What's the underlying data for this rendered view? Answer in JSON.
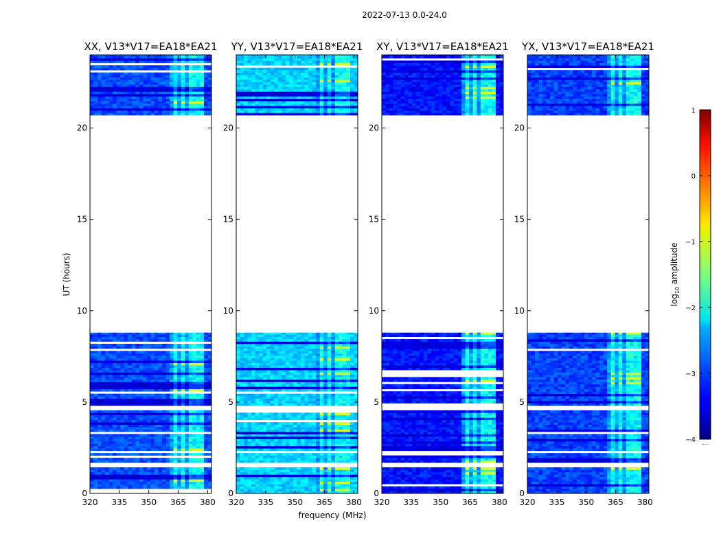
{
  "figure_title": "2022-07-13 0.0-24.0",
  "chart_data": {
    "type": "heatmap",
    "title": "2022-07-13 0.0-24.0",
    "xlabel": "frequency (MHz)",
    "ylabel": "UT (hours)",
    "xlim": [
      320,
      382
    ],
    "ylim": [
      0,
      24
    ],
    "xticks": [
      320,
      335,
      350,
      365,
      380
    ],
    "xtick_labels": [
      "320",
      "335",
      "350",
      "365",
      "380"
    ],
    "yticks": [
      0,
      5,
      10,
      15,
      20
    ],
    "ytick_labels": [
      "0",
      "5",
      "10",
      "15",
      "20"
    ],
    "panels": [
      {
        "title": "XX, V13*V17=EA18*EA21",
        "pol": "XX",
        "background_log_amp": -3.0
      },
      {
        "title": "YY, V13*V17=EA18*EA21",
        "pol": "YY",
        "background_log_amp": -2.35
      },
      {
        "title": "XY, V13*V17=EA18*EA21",
        "pol": "XY",
        "background_log_amp": -3.3
      },
      {
        "title": "YX, V13*V17=EA18*EA21",
        "pol": "YX",
        "background_log_amp": -3.05
      }
    ],
    "data_time_ranges_hours": [
      [
        0.0,
        8.8
      ],
      [
        20.7,
        24.0
      ]
    ],
    "empty_time_range_hours": [
      8.8,
      20.7
    ],
    "flagged_time_intervals_hours": [
      [
        4.45,
        4.7
      ],
      [
        1.4,
        1.6
      ],
      [
        2.15,
        2.3
      ]
    ],
    "rfi_frequency_band_mhz": [
      361,
      379
    ],
    "rfi_strong_channels_mhz": [
      {
        "center": 363.5,
        "width": 3,
        "log_amp": -1.1
      },
      {
        "center": 368,
        "width": 2.5,
        "log_amp": -1.3
      },
      {
        "center": 372,
        "width": 3,
        "log_amp": -1.2
      },
      {
        "center": 376.5,
        "width": 3.5,
        "log_amp": -1.15
      }
    ],
    "colorbar": {
      "label": "log10 amplitude",
      "label_base": "log",
      "label_sub": "10",
      "label_rest": " amplitude",
      "min": -4,
      "max": 1,
      "ticks": [
        1,
        0,
        -1,
        -2,
        -3,
        -4
      ],
      "tick_labels": [
        "1",
        "0",
        "−1",
        "−2",
        "−3",
        "−4"
      ],
      "colormap": "jet",
      "under_label": "....."
    }
  }
}
